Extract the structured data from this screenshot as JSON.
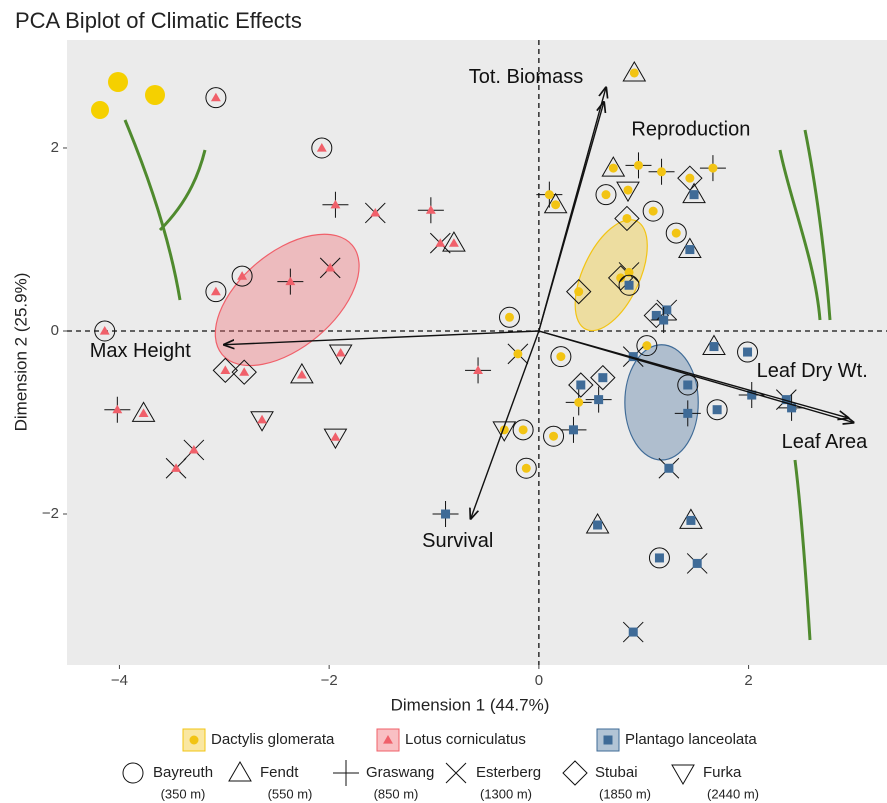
{
  "chart_data": {
    "type": "biplot",
    "title": "PCA Biplot of Climatic Effects",
    "xlabel": "Dimension 1 (44.7%)",
    "ylabel": "Dimension 2 (25.9%)",
    "xlim": [
      -4.5,
      3.32
    ],
    "ylim": [
      -3.65,
      3.18
    ],
    "xticks": [
      {
        "value": -4,
        "label": "−4"
      },
      {
        "value": -2,
        "label": "−2"
      },
      0,
      2
    ],
    "yticks": [
      {
        "value": -2,
        "label": "−2"
      },
      0,
      2
    ],
    "series": [
      {
        "name": "Dactylis glomerata",
        "color": "#f2c414",
        "marker": "circle",
        "ellipse": {
          "cx": 0.69,
          "cy": 0.61,
          "rx": 0.57,
          "ry": 0.31,
          "angle": -65
        },
        "x": [
          0.91,
          0.95,
          0.71,
          1.17,
          1.66,
          1.44,
          0.64,
          0.1,
          0.16,
          0.85,
          1.09,
          0.84,
          1.31,
          0.78,
          0.86,
          0.38,
          -0.28,
          -0.2,
          0.21,
          0.38,
          -0.33,
          -0.15,
          0.14,
          -0.12,
          1.03
        ],
        "y": [
          2.82,
          1.81,
          1.78,
          1.74,
          1.78,
          1.67,
          1.49,
          1.49,
          1.38,
          1.54,
          1.31,
          1.23,
          1.07,
          0.58,
          0.64,
          0.43,
          0.15,
          -0.25,
          -0.28,
          -0.78,
          -1.08,
          -1.08,
          -1.15,
          -1.5,
          -0.16
        ],
        "site": [
          "Fendt",
          "Graswang",
          "Fendt",
          "Graswang",
          "Graswang",
          "Stubai",
          "Bayreuth",
          "Graswang",
          "Fendt",
          "Furka",
          "Bayreuth",
          "Stubai",
          "Bayreuth",
          "Stubai",
          "Esterberg",
          "Stubai",
          "Bayreuth",
          "Esterberg",
          "Bayreuth",
          "Graswang",
          "Furka",
          "Bayreuth",
          "Bayreuth",
          "Bayreuth",
          "Bayreuth"
        ]
      },
      {
        "name": "Lotus corniculatus",
        "color": "#f0606a",
        "marker": "triangle",
        "ellipse": {
          "cx": -2.4,
          "cy": 0.34,
          "rx": 0.81,
          "ry": 0.52,
          "angle": -40
        },
        "x": [
          -3.08,
          -2.07,
          -1.94,
          -1.56,
          -1.03,
          -0.94,
          -0.81,
          -2.83,
          -3.08,
          -1.99,
          -2.37,
          -4.14,
          -2.99,
          -2.81,
          -1.89,
          -2.26,
          -2.64,
          -0.58,
          -4.02,
          -3.77,
          -3.29,
          -3.46,
          -1.94
        ],
        "y": [
          2.55,
          2.0,
          1.38,
          1.29,
          1.32,
          0.96,
          0.96,
          0.6,
          0.43,
          0.69,
          0.54,
          0.0,
          -0.43,
          -0.45,
          -0.24,
          -0.48,
          -0.97,
          -0.43,
          -0.86,
          -0.9,
          -1.3,
          -1.5,
          -1.16
        ],
        "site": [
          "Bayreuth",
          "Bayreuth",
          "Graswang",
          "Esterberg",
          "Graswang",
          "Esterberg",
          "Fendt",
          "Bayreuth",
          "Bayreuth",
          "Esterberg",
          "Graswang",
          "Bayreuth",
          "Stubai",
          "Stubai",
          "Furka",
          "Fendt",
          "Furka",
          "Graswang",
          "Graswang",
          "Fendt",
          "Esterberg",
          "Esterberg",
          "Furka"
        ]
      },
      {
        "name": "Plantago lanceolata",
        "color": "#3f6b97",
        "marker": "square",
        "ellipse": {
          "cx": 1.17,
          "cy": -0.78,
          "rx": 0.35,
          "ry": 0.63,
          "angle": 0
        },
        "x": [
          1.48,
          1.44,
          0.86,
          1.12,
          1.22,
          1.19,
          1.67,
          1.99,
          0.9,
          0.4,
          0.61,
          0.57,
          1.42,
          1.42,
          1.7,
          2.03,
          2.36,
          2.41,
          0.33,
          1.24,
          0.56,
          1.45,
          1.15,
          1.51,
          0.9,
          -0.89
        ],
        "y": [
          1.49,
          0.89,
          0.5,
          0.17,
          0.23,
          0.12,
          -0.17,
          -0.23,
          -0.28,
          -0.59,
          -0.51,
          -0.75,
          -0.59,
          -0.9,
          -0.86,
          -0.7,
          -0.75,
          -0.84,
          -1.08,
          -1.5,
          -2.12,
          -2.07,
          -2.48,
          -2.54,
          -3.29,
          -2.0
        ],
        "site": [
          "Fendt",
          "Fendt",
          "Bayreuth",
          "Stubai",
          "Esterberg",
          "Graswang",
          "Fendt",
          "Bayreuth",
          "Esterberg",
          "Stubai",
          "Stubai",
          "Graswang",
          "Bayreuth",
          "Graswang",
          "Bayreuth",
          "Graswang",
          "Esterberg",
          "Graswang",
          "Graswang",
          "Esterberg",
          "Fendt",
          "Fendt",
          "Bayreuth",
          "Esterberg",
          "Esterberg",
          "Graswang"
        ]
      }
    ],
    "sites": [
      {
        "name": "Bayreuth",
        "elevation": "(350 m)",
        "marker": "circle"
      },
      {
        "name": "Fendt",
        "elevation": "(550 m)",
        "marker": "triangle"
      },
      {
        "name": "Graswang",
        "elevation": "(850 m)",
        "marker": "plus"
      },
      {
        "name": "Esterberg",
        "elevation": "(1300 m)",
        "marker": "cross"
      },
      {
        "name": "Stubai",
        "elevation": "(1850 m)",
        "marker": "diamond"
      },
      {
        "name": "Furka",
        "elevation": "(2440 m)",
        "marker": "triangle-down"
      }
    ],
    "loadings": [
      {
        "name": "Tot. Biomass",
        "x": 0.64,
        "y": 2.66
      },
      {
        "name": "Reproduction",
        "x": 0.62,
        "y": 2.5
      },
      {
        "name": "Max Height",
        "x": -3.0,
        "y": -0.15
      },
      {
        "name": "Leaf Dry Wt.",
        "x": 2.95,
        "y": -0.95
      },
      {
        "name": "Leaf Area",
        "x": 3.0,
        "y": -1.0
      },
      {
        "name": "Survival",
        "x": -0.65,
        "y": -2.05
      }
    ]
  }
}
